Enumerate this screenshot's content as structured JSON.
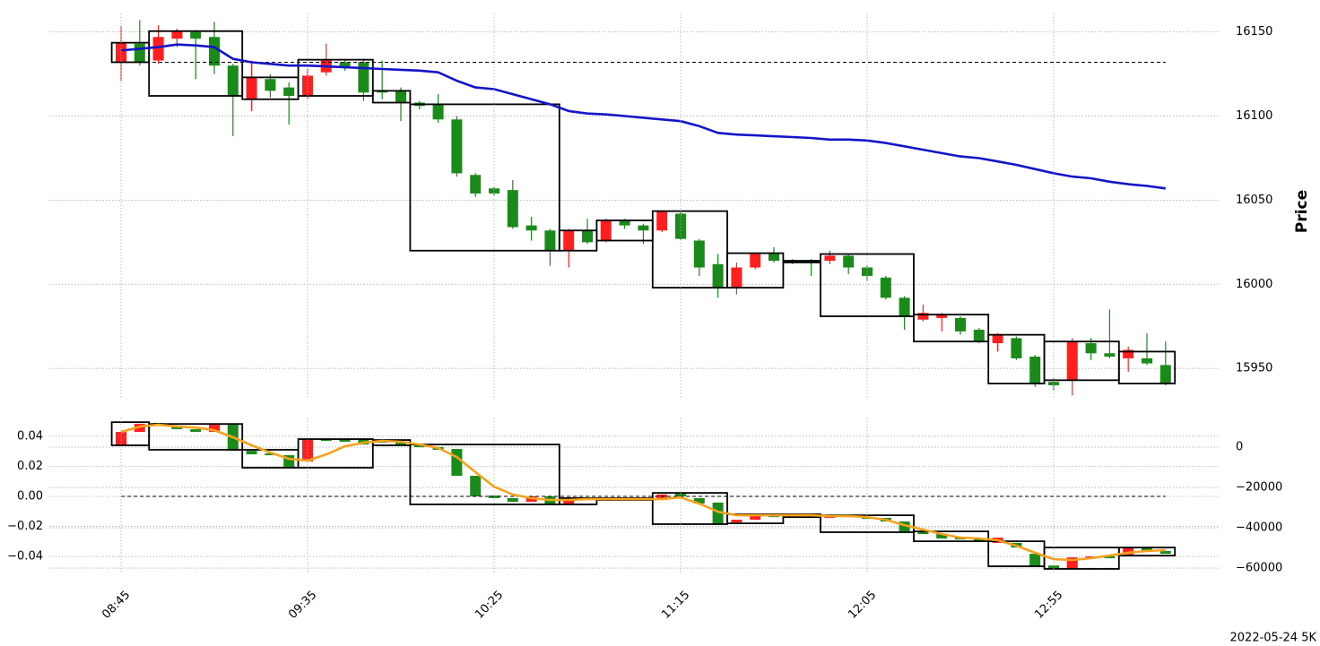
{
  "chart_data": [
    {
      "type": "candlestick",
      "ylabel": "Price",
      "open": [
        16132.4,
        16143,
        16133,
        16146,
        16150,
        16147,
        16130,
        16110,
        16122,
        16117,
        16112,
        16126,
        16132,
        16132,
        16115,
        16115,
        16108,
        16107,
        16098,
        16065,
        16057,
        16056,
        16035,
        16032,
        16020,
        16032,
        16026,
        16038,
        16035,
        16032,
        16042,
        16026,
        16012,
        15998,
        16010,
        16018,
        16014,
        16014,
        16014,
        16017,
        16010,
        16004,
        15992,
        15979,
        15980,
        15980,
        15973,
        15965,
        15968,
        15957,
        15942,
        15943,
        15965,
        15959,
        15956,
        15956,
        15952
      ],
      "high": [
        16153.7,
        16157,
        16154,
        16152,
        16151,
        16156,
        16131,
        16133,
        16125,
        16120,
        16128,
        16143,
        16133,
        16134,
        16133,
        16117,
        16109,
        16113,
        16100,
        16066,
        16058,
        16062,
        16040,
        16033,
        16033,
        16039,
        16039,
        16039,
        16036,
        16044,
        16043,
        16027,
        16018,
        16013,
        16019,
        16022,
        16015,
        16015,
        16020,
        16018,
        16011,
        16005,
        15993,
        15988,
        15983,
        15981,
        15974,
        15971,
        15969,
        15958,
        15944,
        15968,
        15968,
        15985,
        15963,
        15971,
        15966
      ],
      "low": [
        16120.7,
        16130,
        16131,
        16141,
        16122,
        16125,
        16088,
        16103,
        16111,
        16095,
        16110,
        16124,
        16127,
        16109,
        16110,
        16097,
        16104,
        16096,
        16064,
        16052,
        16053,
        16033,
        16026,
        16011,
        16010,
        16024,
        16025,
        16033,
        16024,
        16031,
        16026,
        16005,
        15992,
        15994,
        16009,
        16013,
        16012,
        16005,
        16012,
        16006,
        16002,
        15991,
        15973,
        15978,
        15972,
        15970,
        15965,
        15960,
        15955,
        15939,
        15937,
        15934,
        15955,
        15956,
        15948,
        15952,
        15940
      ],
      "close": [
        16143.6,
        16132,
        16147,
        16150.5,
        16146,
        16130,
        16112,
        16123,
        16115,
        16112,
        16124,
        16133,
        16129,
        16114,
        16114,
        16108,
        16106,
        16098,
        16066,
        16054,
        16054,
        16034,
        16032,
        16020,
        16032,
        16025,
        16038,
        16035,
        16032,
        16043,
        16027,
        16010,
        15998,
        16010,
        16018,
        16014,
        16013,
        16013,
        16017,
        16010,
        16005,
        15992,
        15981,
        15983,
        15982,
        15972,
        15966,
        15970,
        15956,
        15941,
        15940,
        15966,
        15959,
        15957,
        15961,
        15953,
        15941
      ],
      "up_color": "#ff1f1f",
      "down_color": "#1a8a1a",
      "line": {
        "color": "#1414c8",
        "values": [
          16139,
          16140,
          16141,
          16142.5,
          16142,
          16141,
          16134,
          16132,
          16131,
          16130,
          16130,
          16129.5,
          16129,
          16128.5,
          16128,
          16127.5,
          16127,
          16126,
          16121,
          16117,
          16116,
          16113,
          16110,
          16107,
          16103,
          16101.5,
          16101,
          16100,
          16099,
          16098,
          16097,
          16094,
          16090,
          16089,
          16088.5,
          16088,
          16087.5,
          16087,
          16086,
          16086,
          16085.5,
          16084,
          16082,
          16080,
          16078,
          16076,
          16075,
          16073,
          16071,
          16068.5,
          16066,
          16064,
          16063,
          16061,
          16059.5,
          16058.5,
          16057
        ]
      },
      "hline": 16132,
      "boxes": [
        {
          "start": 0,
          "end": 1,
          "high": 16143.6,
          "low": 16132
        },
        {
          "start": 2,
          "end": 6,
          "high": 16150.5,
          "low": 16112
        },
        {
          "start": 7,
          "end": 9,
          "high": 16123,
          "low": 16110
        },
        {
          "start": 10,
          "end": 13,
          "high": 16133.5,
          "low": 16112
        },
        {
          "start": 14,
          "end": 15,
          "high": 16115,
          "low": 16108
        },
        {
          "start": 16,
          "end": 23,
          "high": 16107,
          "low": 16020
        },
        {
          "start": 24,
          "end": 25,
          "high": 16032,
          "low": 16020
        },
        {
          "start": 26,
          "end": 28,
          "high": 16038,
          "low": 16026
        },
        {
          "start": 29,
          "end": 32,
          "high": 16043.5,
          "low": 15998
        },
        {
          "start": 33,
          "end": 35,
          "high": 16018.5,
          "low": 15998
        },
        {
          "start": 36,
          "end": 37,
          "high": 16014,
          "low": 16013
        },
        {
          "start": 38,
          "end": 42,
          "high": 16018,
          "low": 15981
        },
        {
          "start": 43,
          "end": 46,
          "high": 15982,
          "low": 15966
        },
        {
          "start": 47,
          "end": 49,
          "high": 15970,
          "low": 15941
        },
        {
          "start": 50,
          "end": 53,
          "high": 15966,
          "low": 15943
        },
        {
          "start": 54,
          "end": 56,
          "high": 15960,
          "low": 15941
        }
      ],
      "ylim": [
        15932,
        16161
      ],
      "yticks": [
        15950,
        16000,
        16050,
        16100,
        16150
      ],
      "grid": true
    },
    {
      "type": "candlestick",
      "categories": [
        "08:45",
        null,
        null,
        null,
        null,
        null,
        null,
        null,
        null,
        null,
        "09:35",
        null,
        null,
        null,
        null,
        null,
        null,
        null,
        null,
        null,
        "10:25",
        null,
        null,
        null,
        null,
        null,
        null,
        null,
        null,
        null,
        "11:15",
        null,
        null,
        null,
        null,
        null,
        null,
        null,
        null,
        null,
        "12:05",
        null,
        null,
        null,
        null,
        null,
        null,
        null,
        null,
        null,
        "12:55",
        null,
        null,
        null,
        null,
        null,
        null
      ],
      "open": [
        900,
        7550,
        12000,
        10650,
        8900,
        7550,
        11100,
        -1800,
        -3100,
        -4000,
        -7100,
        4000,
        4000,
        4000,
        3100,
        2200,
        1300,
        0,
        -900,
        -14200,
        -24000,
        -25300,
        -27100,
        -24400,
        -28000,
        -25300,
        -25300,
        -25800,
        -25800,
        -26200,
        -23100,
        -25300,
        -27500,
        -37300,
        -36000,
        -33800,
        -33800,
        -34200,
        -35100,
        -33800,
        -34700,
        -35100,
        -36900,
        -42200,
        -43100,
        -44900,
        -45300,
        -47500,
        -47500,
        -52900,
        -58700,
        -60000,
        -55100,
        -54200,
        -53300,
        -50200,
        -51500
      ],
      "close": [
        7550,
        11550,
        10650,
        8900,
        7550,
        11100,
        -1800,
        -3550,
        -4000,
        -10200,
        4000,
        3100,
        2650,
        1300,
        2200,
        1300,
        0,
        -1300,
        -14200,
        -24400,
        -25300,
        -27100,
        -24400,
        -28000,
        -25300,
        -26200,
        -26200,
        -26200,
        -26200,
        -23500,
        -24400,
        -28000,
        -38200,
        -36000,
        -33800,
        -34700,
        -34700,
        -35100,
        -33800,
        -34700,
        -35600,
        -36900,
        -41800,
        -43100,
        -45300,
        -45800,
        -46700,
        -44900,
        -49800,
        -59100,
        -60000,
        -54700,
        -54200,
        -55100,
        -49800,
        -51500,
        -52900
      ],
      "axis": "y2",
      "up_color": "#ff1f1f",
      "down_color": "#1a8a1a",
      "line": {
        "color": "#f5a21f",
        "axis": "y2",
        "values": [
          7550,
          10200,
          11100,
          10200,
          9700,
          8400,
          4900,
          900,
          -2700,
          -5800,
          -6700,
          -3600,
          400,
          2200,
          3100,
          2700,
          1300,
          -400,
          -4900,
          -12400,
          -19600,
          -23500,
          -25300,
          -26200,
          -26200,
          -25800,
          -25800,
          -25800,
          -25800,
          -25800,
          -24900,
          -28000,
          -32000,
          -33800,
          -33800,
          -33800,
          -33800,
          -33800,
          -34200,
          -34200,
          -34700,
          -36000,
          -38700,
          -40900,
          -43100,
          -44900,
          -45300,
          -46200,
          -48900,
          -52400,
          -55600,
          -56000,
          -55100,
          -53800,
          -52400,
          -51500,
          -51100
        ]
      },
      "hline": 0,
      "boxes": [
        {
          "start": 0,
          "end": 1,
          "high": 12400,
          "low": 900
        },
        {
          "start": 2,
          "end": 6,
          "high": 11500,
          "low": -1300
        },
        {
          "start": 7,
          "end": 9,
          "high": -1300,
          "low": -10200
        },
        {
          "start": 10,
          "end": 13,
          "high": 4000,
          "low": -10200
        },
        {
          "start": 14,
          "end": 15,
          "high": 3550,
          "low": 900
        },
        {
          "start": 16,
          "end": 23,
          "high": 1300,
          "low": -28400
        },
        {
          "start": 24,
          "end": 25,
          "high": -25300,
          "low": -28400
        },
        {
          "start": 26,
          "end": 28,
          "high": -25300,
          "low": -26200
        },
        {
          "start": 29,
          "end": 32,
          "high": -22700,
          "low": -38200
        },
        {
          "start": 33,
          "end": 35,
          "high": -33300,
          "low": -37800
        },
        {
          "start": 36,
          "end": 37,
          "high": -33300,
          "low": -34700
        },
        {
          "start": 38,
          "end": 42,
          "high": -33800,
          "low": -42200
        },
        {
          "start": 43,
          "end": 46,
          "high": -41800,
          "low": -46700
        },
        {
          "start": 47,
          "end": 49,
          "high": -46700,
          "low": -59100
        },
        {
          "start": 50,
          "end": 53,
          "high": -49800,
          "low": -60400
        },
        {
          "start": 54,
          "end": 56,
          "high": -49800,
          "low": -53800
        }
      ],
      "ylim": [
        -0.0513,
        0.0525
      ],
      "yticks": [
        {
          "value": -0.04,
          "label": "−0.04"
        },
        {
          "value": -0.02,
          "label": "−0.02"
        },
        {
          "value": 0,
          "label": "0.00"
        },
        0.02,
        0.04
      ],
      "y2lim": [
        -62650,
        14700
      ],
      "y2ticks": [
        {
          "value": -60000,
          "label": "−60000"
        },
        {
          "value": -40000,
          "label": "−40000"
        },
        {
          "value": -20000,
          "label": "−20000"
        },
        0
      ],
      "grid": true,
      "footer": "2022-05-24 5K"
    }
  ]
}
